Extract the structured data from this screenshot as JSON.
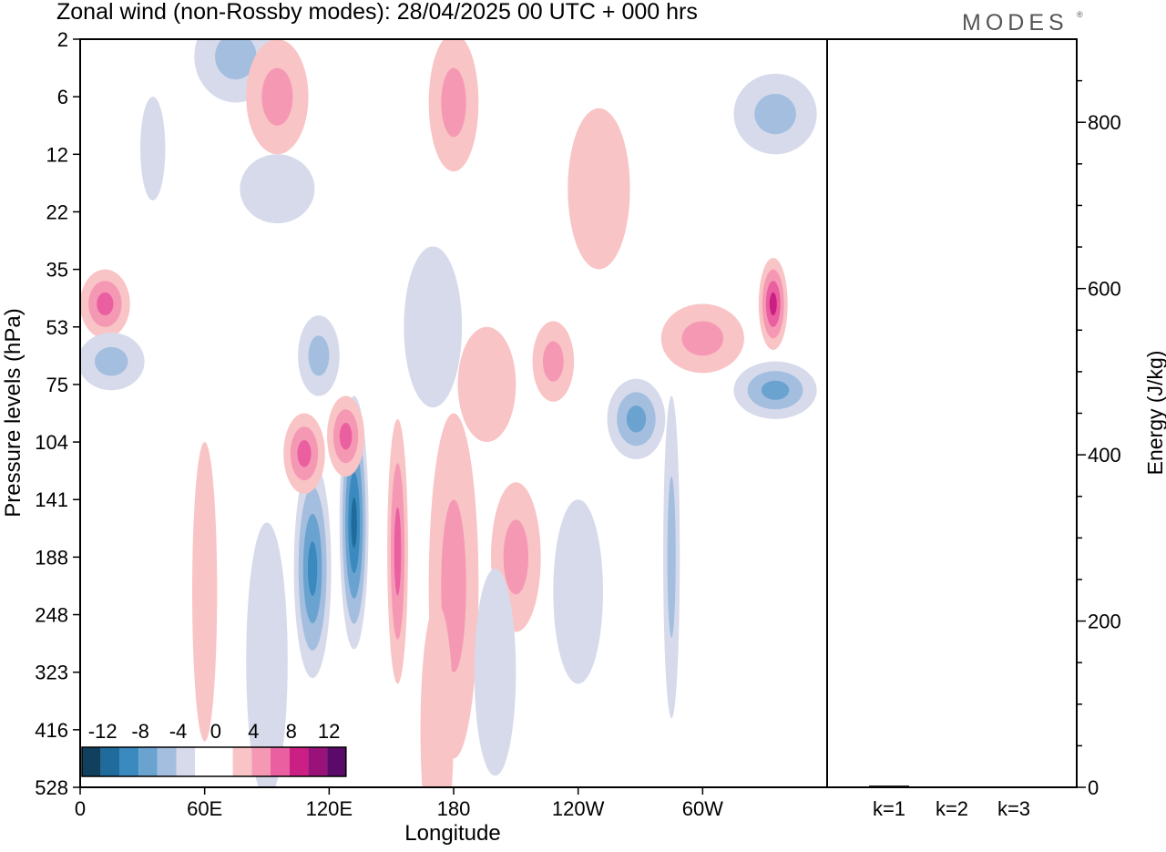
{
  "title": "Zonal wind (non-Rossby modes):  28/04/2025  00 UTC  + 000 hrs",
  "logo_text": "MODES",
  "logo_mark": "®",
  "chart_data": [
    {
      "type": "heatmap",
      "title": "Zonal wind (non-Rossby modes):  28/04/2025  00 UTC  + 000 hrs",
      "xlabel": "Longitude",
      "ylabel": "Pressure levels (hPa)",
      "x_ticks": [
        "0",
        "60E",
        "120E",
        "180",
        "120W",
        "60W"
      ],
      "x_tick_degrees": [
        0,
        60,
        120,
        180,
        240,
        300
      ],
      "xlim": [
        0,
        360
      ],
      "y_ticks": [
        "2",
        "6",
        "12",
        "22",
        "35",
        "53",
        "75",
        "104",
        "141",
        "188",
        "248",
        "323",
        "416",
        "528"
      ],
      "y_scale": "level-index",
      "colorbar": {
        "labels": [
          "-12",
          "-8",
          "-4",
          "0",
          "4",
          "8",
          "12"
        ],
        "colors": [
          "#10405e",
          "#1f6c9c",
          "#3a8ac0",
          "#6aa3cf",
          "#a3bedf",
          "#d6daeb",
          "#ffffff",
          "#ffffff",
          "#f9c4c5",
          "#f598b4",
          "#ea5fa0",
          "#cc1f84",
          "#98127a",
          "#5a0b6a"
        ]
      },
      "blobs": [
        {
          "lon": 153,
          "lev": 8.9,
          "rx": 5,
          "ry": 2.3,
          "value": 7
        },
        {
          "lon": 132,
          "lev": 8.4,
          "rx": 7,
          "ry": 2.2,
          "value": -11
        },
        {
          "lon": 112,
          "lev": 9.2,
          "rx": 9,
          "ry": 1.9,
          "value": -9
        },
        {
          "lon": 108,
          "lev": 7.2,
          "rx": 10,
          "ry": 0.7,
          "value": 6
        },
        {
          "lon": 128,
          "lev": 6.9,
          "rx": 9,
          "ry": 0.7,
          "value": 6
        },
        {
          "lon": 180,
          "lev": 9.5,
          "rx": 12,
          "ry": 3.0,
          "value": 4
        },
        {
          "lon": 210,
          "lev": 9.0,
          "rx": 12,
          "ry": 1.3,
          "value": 5
        },
        {
          "lon": 196,
          "lev": 6.0,
          "rx": 14,
          "ry": 1.0,
          "value": 3
        },
        {
          "lon": 228,
          "lev": 5.6,
          "rx": 10,
          "ry": 0.7,
          "value": 5
        },
        {
          "lon": 268,
          "lev": 6.6,
          "rx": 14,
          "ry": 0.7,
          "value": -7
        },
        {
          "lon": 285,
          "lev": 9.0,
          "rx": 4,
          "ry": 2.8,
          "value": -4
        },
        {
          "lon": 300,
          "lev": 5.2,
          "rx": 20,
          "ry": 0.6,
          "value": 5
        },
        {
          "lon": 334,
          "lev": 4.6,
          "rx": 7,
          "ry": 0.8,
          "value": 8
        },
        {
          "lon": 335,
          "lev": 6.1,
          "rx": 20,
          "ry": 0.5,
          "value": -6
        },
        {
          "lon": 12,
          "lev": 4.6,
          "rx": 12,
          "ry": 0.6,
          "value": 6
        },
        {
          "lon": 15,
          "lev": 5.6,
          "rx": 16,
          "ry": 0.5,
          "value": -4
        },
        {
          "lon": 75,
          "lev": 0.3,
          "rx": 20,
          "ry": 0.8,
          "value": -5
        },
        {
          "lon": 95,
          "lev": 1.0,
          "rx": 15,
          "ry": 1.0,
          "value": 4
        },
        {
          "lon": 180,
          "lev": 1.1,
          "rx": 12,
          "ry": 1.2,
          "value": 5
        },
        {
          "lon": 250,
          "lev": 2.6,
          "rx": 15,
          "ry": 1.4,
          "value": 3
        },
        {
          "lon": 335,
          "lev": 1.3,
          "rx": 20,
          "ry": 0.7,
          "value": -5
        },
        {
          "lon": 95,
          "lev": 2.6,
          "rx": 18,
          "ry": 0.6,
          "value": -3
        },
        {
          "lon": 60,
          "lev": 9.6,
          "rx": 6,
          "ry": 2.6,
          "value": 3
        },
        {
          "lon": 90,
          "lev": 10.8,
          "rx": 10,
          "ry": 2.4,
          "value": -3
        },
        {
          "lon": 200,
          "lev": 11.0,
          "rx": 10,
          "ry": 1.8,
          "value": -3
        },
        {
          "lon": 172,
          "lev": 12.0,
          "rx": 8,
          "ry": 2.2,
          "value": 3
        },
        {
          "lon": 170,
          "lev": 5.0,
          "rx": 14,
          "ry": 1.4,
          "value": -3
        },
        {
          "lon": 115,
          "lev": 5.5,
          "rx": 10,
          "ry": 0.7,
          "value": -4
        },
        {
          "lon": 240,
          "lev": 9.6,
          "rx": 12,
          "ry": 1.6,
          "value": -3
        },
        {
          "lon": 35,
          "lev": 1.9,
          "rx": 6,
          "ry": 0.9,
          "value": -3
        }
      ]
    },
    {
      "type": "bar",
      "categories": [
        "k=1",
        "k=2",
        "k=3"
      ],
      "values": [
        2,
        1,
        1
      ],
      "ylabel": "Energy (J/kg)",
      "ylim": [
        0,
        900
      ],
      "y_ticks": [
        0,
        200,
        400,
        600,
        800
      ]
    }
  ]
}
